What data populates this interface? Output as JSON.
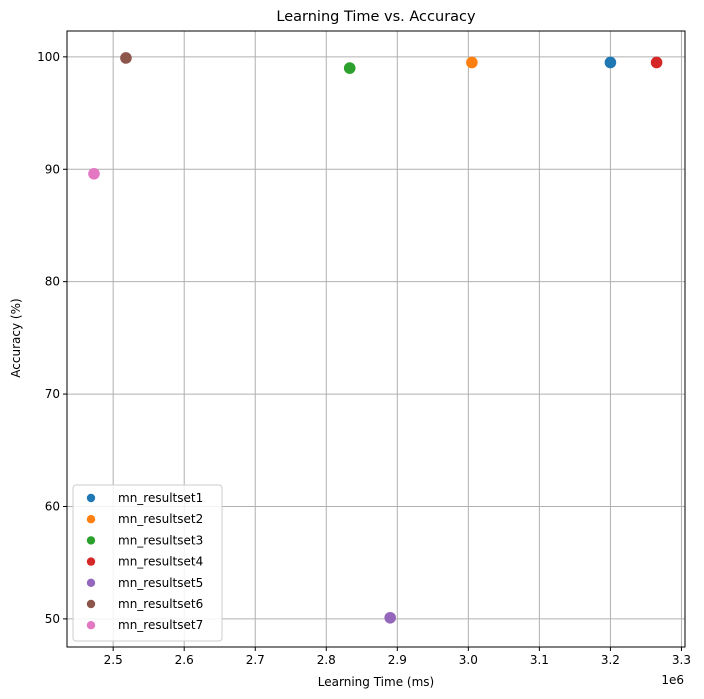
{
  "chart_data": {
    "type": "scatter",
    "title": "Learning Time vs. Accuracy",
    "xlabel": "Learning Time (ms)",
    "ylabel": "Accuracy (%)",
    "x_offset_label": "1e6",
    "xlim": [
      2.435,
      3.305
    ],
    "ylim": [
      47.5,
      102.3
    ],
    "x_ticks": [
      2.5,
      2.6,
      2.7,
      2.8,
      2.9,
      3.0,
      3.1,
      3.2,
      3.3
    ],
    "x_tick_labels": [
      "2.5",
      "2.6",
      "2.7",
      "2.8",
      "2.9",
      "3.0",
      "3.1",
      "3.2",
      "3.3"
    ],
    "y_ticks": [
      50,
      60,
      70,
      80,
      90,
      100
    ],
    "y_tick_labels": [
      "50",
      "60",
      "70",
      "80",
      "90",
      "100"
    ],
    "grid": true,
    "legend_position": "lower-left",
    "series": [
      {
        "name": "mn_resultset1",
        "color": "#1f77b4",
        "points": [
          {
            "x": 3.2,
            "y": 99.5
          }
        ]
      },
      {
        "name": "mn_resultset2",
        "color": "#ff7f0e",
        "points": [
          {
            "x": 3.005,
            "y": 99.5
          }
        ]
      },
      {
        "name": "mn_resultset3",
        "color": "#2ca02c",
        "points": [
          {
            "x": 2.833,
            "y": 99.0
          }
        ]
      },
      {
        "name": "mn_resultset4",
        "color": "#d62728",
        "points": [
          {
            "x": 3.265,
            "y": 99.5
          }
        ]
      },
      {
        "name": "mn_resultset5",
        "color": "#9467bd",
        "points": [
          {
            "x": 2.89,
            "y": 50.1
          }
        ]
      },
      {
        "name": "mn_resultset6",
        "color": "#8c564b",
        "points": [
          {
            "x": 2.518,
            "y": 99.9
          }
        ]
      },
      {
        "name": "mn_resultset7",
        "color": "#e377c2",
        "points": [
          {
            "x": 2.473,
            "y": 89.6
          }
        ]
      }
    ]
  }
}
